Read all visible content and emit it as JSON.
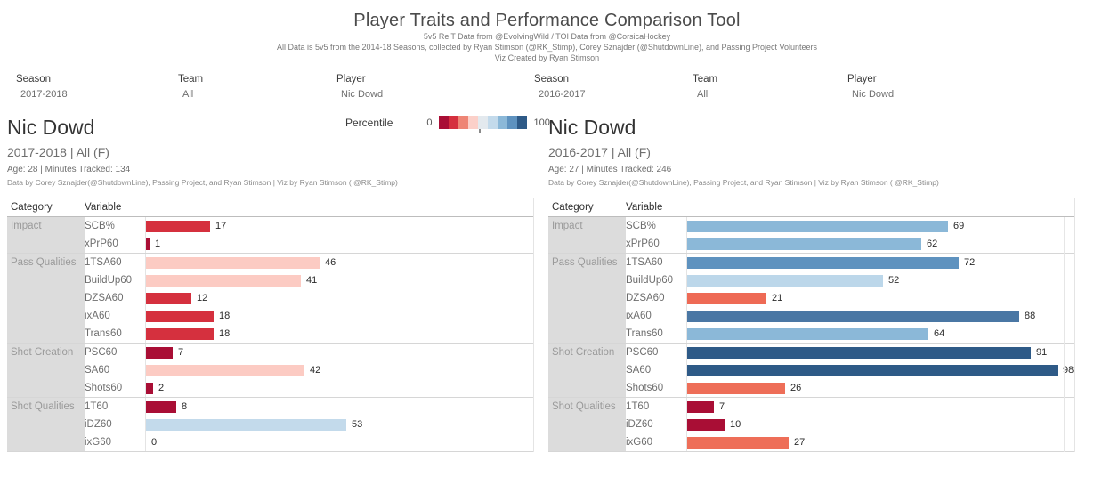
{
  "header": {
    "title": "Player Traits and Performance Comparison Tool",
    "subtitle1": "5v5 RelT Data from @EvolvingWild / TOI Data from @CorsicaHockey",
    "subtitle2": "All Data is 5v5 from the 2014-18 Seasons, collected by Ryan Stimson (@RK_Stimp), Corey Sznajder (@ShutdownLine), and Passing Project Volunteers",
    "subtitle3": "Viz Created by Ryan Stimson"
  },
  "filters": [
    {
      "id": "season-left",
      "label": "Season",
      "value": "2017-2018"
    },
    {
      "id": "team-left",
      "label": "Team",
      "value": "All"
    },
    {
      "id": "player-left",
      "label": "Player",
      "value": "Nic Dowd"
    },
    {
      "id": "season-right",
      "label": "Season",
      "value": "2016-2017"
    },
    {
      "id": "team-right",
      "label": "Team",
      "value": "All"
    },
    {
      "id": "player-right",
      "label": "Player",
      "value": "Nic Dowd"
    }
  ],
  "legend": {
    "label": "Percentile",
    "min": "0",
    "max": "100",
    "colors": [
      "#a90e35",
      "#d5303e",
      "#ee8575",
      "#fbd0c9",
      "#e3e9ee",
      "#c3daeb",
      "#8bb8d8",
      "#5e92bf",
      "#2e5a87"
    ]
  },
  "table_headers": {
    "category": "Category",
    "variable": "Variable"
  },
  "panels": [
    {
      "id": "left",
      "player": "Nic Dowd",
      "subtitle": "2017-2018 | All (F)",
      "meta": "Age: 28 | Minutes Tracked: 134",
      "credit": "Data by Corey Sznajder(@ShutdownLine), Passing Project, and Ryan Stimson | Viz by Ryan Stimson ( @RK_Stimp)",
      "groups": [
        {
          "category": "Impact",
          "rows": [
            {
              "variable": "SCB%",
              "value": 17,
              "color": "#d5303e"
            },
            {
              "variable": "xPrP60",
              "value": 1,
              "color": "#a90e35"
            }
          ]
        },
        {
          "category": "Pass Qualities",
          "rows": [
            {
              "variable": "1TSA60",
              "value": 46,
              "color": "#fccbc3"
            },
            {
              "variable": "BuildUp60",
              "value": 41,
              "color": "#fccbc3"
            },
            {
              "variable": "DZSA60",
              "value": 12,
              "color": "#d5303e"
            },
            {
              "variable": "ixA60",
              "value": 18,
              "color": "#d5303e"
            },
            {
              "variable": "Trans60",
              "value": 18,
              "color": "#d5303e"
            }
          ]
        },
        {
          "category": "Shot Creation",
          "rows": [
            {
              "variable": "PSC60",
              "value": 7,
              "color": "#a90e35"
            },
            {
              "variable": "SA60",
              "value": 42,
              "color": "#fccbc3"
            },
            {
              "variable": "Shots60",
              "value": 2,
              "color": "#a90e35"
            }
          ]
        },
        {
          "category": "Shot Qualities",
          "rows": [
            {
              "variable": "1T60",
              "value": 8,
              "color": "#a90e35"
            },
            {
              "variable": "iDZ60",
              "value": 53,
              "color": "#c3daeb"
            },
            {
              "variable": "ixG60",
              "value": 0,
              "color": "#e3e9ee"
            }
          ]
        }
      ]
    },
    {
      "id": "right",
      "player": "Nic Dowd",
      "subtitle": "2016-2017 | All (F)",
      "meta": "Age: 27 | Minutes Tracked: 246",
      "credit": "Data by Corey Sznajder(@ShutdownLine), Passing Project, and Ryan Stimson | Viz by Ryan Stimson ( @RK_Stimp)",
      "groups": [
        {
          "category": "Impact",
          "rows": [
            {
              "variable": "SCB%",
              "value": 69,
              "color": "#8bb8d8"
            },
            {
              "variable": "xPrP60",
              "value": 62,
              "color": "#8bb8d8"
            }
          ]
        },
        {
          "category": "Pass Qualities",
          "rows": [
            {
              "variable": "1TSA60",
              "value": 72,
              "color": "#5e92bf"
            },
            {
              "variable": "BuildUp60",
              "value": 52,
              "color": "#bcd7ea"
            },
            {
              "variable": "DZSA60",
              "value": 21,
              "color": "#ee6a55"
            },
            {
              "variable": "ixA60",
              "value": 88,
              "color": "#4a77a4"
            },
            {
              "variable": "Trans60",
              "value": 64,
              "color": "#8bb8d8"
            }
          ]
        },
        {
          "category": "Shot Creation",
          "rows": [
            {
              "variable": "PSC60",
              "value": 91,
              "color": "#2e5a87"
            },
            {
              "variable": "SA60",
              "value": 98,
              "color": "#2e5a87"
            },
            {
              "variable": "Shots60",
              "value": 26,
              "color": "#ee6e58"
            }
          ]
        },
        {
          "category": "Shot Qualities",
          "rows": [
            {
              "variable": "1T60",
              "value": 7,
              "color": "#a90e35"
            },
            {
              "variable": "iDZ60",
              "value": 10,
              "color": "#a90e35"
            },
            {
              "variable": "ixG60",
              "value": 27,
              "color": "#ee6e58"
            }
          ]
        }
      ]
    }
  ],
  "chart_data": [
    {
      "type": "bar",
      "orientation": "horizontal",
      "title": "Nic Dowd — 2017-2018 | All (F)",
      "xlabel": "Percentile",
      "xlim": [
        0,
        100
      ],
      "category_groups": [
        "Impact",
        "Impact",
        "Pass Qualities",
        "Pass Qualities",
        "Pass Qualities",
        "Pass Qualities",
        "Pass Qualities",
        "Shot Creation",
        "Shot Creation",
        "Shot Creation",
        "Shot Qualities",
        "Shot Qualities",
        "Shot Qualities"
      ],
      "categories": [
        "SCB%",
        "xPrP60",
        "1TSA60",
        "BuildUp60",
        "DZSA60",
        "ixA60",
        "Trans60",
        "PSC60",
        "SA60",
        "Shots60",
        "1T60",
        "iDZ60",
        "ixG60"
      ],
      "values": [
        17,
        1,
        46,
        41,
        12,
        18,
        18,
        7,
        42,
        2,
        8,
        53,
        0
      ],
      "color_encoding": "diverging red (low percentile) to blue (high percentile)"
    },
    {
      "type": "bar",
      "orientation": "horizontal",
      "title": "Nic Dowd — 2016-2017 | All (F)",
      "xlabel": "Percentile",
      "xlim": [
        0,
        100
      ],
      "category_groups": [
        "Impact",
        "Impact",
        "Pass Qualities",
        "Pass Qualities",
        "Pass Qualities",
        "Pass Qualities",
        "Pass Qualities",
        "Shot Creation",
        "Shot Creation",
        "Shot Creation",
        "Shot Qualities",
        "Shot Qualities",
        "Shot Qualities"
      ],
      "categories": [
        "SCB%",
        "xPrP60",
        "1TSA60",
        "BuildUp60",
        "DZSA60",
        "ixA60",
        "Trans60",
        "PSC60",
        "SA60",
        "Shots60",
        "1T60",
        "iDZ60",
        "ixG60"
      ],
      "values": [
        69,
        62,
        72,
        52,
        21,
        88,
        64,
        91,
        98,
        26,
        7,
        10,
        27
      ],
      "color_encoding": "diverging red (low percentile) to blue (high percentile)"
    }
  ]
}
